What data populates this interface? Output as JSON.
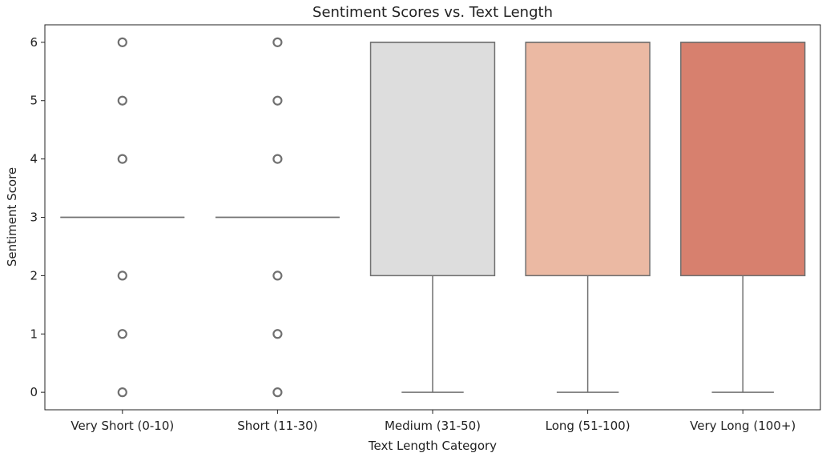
{
  "chart_data": {
    "type": "box",
    "title": "Sentiment Scores vs. Text Length",
    "xlabel": "Text Length Category",
    "ylabel": "Sentiment Score",
    "ylim": [
      -0.3,
      6.3
    ],
    "yticks": [
      0,
      1,
      2,
      3,
      4,
      5,
      6
    ],
    "grid": false,
    "categories": [
      "Very Short (0-10)",
      "Short (11-30)",
      "Medium (31-50)",
      "Long (51-100)",
      "Very Long (100+)"
    ],
    "boxes": [
      {
        "category": "Very Short (0-10)",
        "min": 3,
        "q1": 3,
        "median": 3,
        "q3": 3,
        "max": 3,
        "outliers": [
          0,
          1,
          2,
          4,
          5,
          6
        ],
        "color": "#f7f7f7"
      },
      {
        "category": "Short (11-30)",
        "min": 3,
        "q1": 3,
        "median": 3,
        "q3": 3,
        "max": 3,
        "outliers": [
          0,
          1,
          2,
          4,
          5,
          6
        ],
        "color": "#f7f7f7"
      },
      {
        "category": "Medium (31-50)",
        "min": 0,
        "q1": 2,
        "median": 6,
        "q3": 6,
        "max": 6,
        "outliers": [],
        "color": "#dddddd"
      },
      {
        "category": "Long (51-100)",
        "min": 0,
        "q1": 2,
        "median": 6,
        "q3": 6,
        "max": 6,
        "outliers": [],
        "color": "#ebb9a3"
      },
      {
        "category": "Very Long (100+)",
        "min": 0,
        "q1": 2,
        "median": 6,
        "q3": 6,
        "max": 6,
        "outliers": [],
        "color": "#d7806e"
      }
    ],
    "line_color": "#707070"
  }
}
